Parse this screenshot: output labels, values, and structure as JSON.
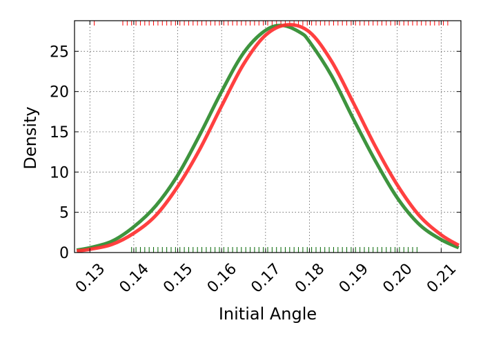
{
  "chart_data": {
    "type": "line",
    "title": "",
    "xlabel": "Initial Angle",
    "ylabel": "Density",
    "xlim": [
      0.1265,
      0.2145
    ],
    "ylim": [
      0,
      28.8
    ],
    "x_ticks": [
      0.13,
      0.14,
      0.15,
      0.16,
      0.17,
      0.18,
      0.19,
      0.2,
      0.21
    ],
    "x_tick_labels": [
      "0.13",
      "0.14",
      "0.15",
      "0.16",
      "0.17",
      "0.18",
      "0.19",
      "0.20",
      "0.21"
    ],
    "y_ticks": [
      0,
      5,
      10,
      15,
      20,
      25
    ],
    "y_tick_labels": [
      "0",
      "5",
      "10",
      "15",
      "20",
      "25"
    ],
    "grid": true,
    "legend": false,
    "series": [
      {
        "color": "#2e8b2e",
        "x": [
          0.127,
          0.13,
          0.135,
          0.14,
          0.145,
          0.15,
          0.155,
          0.16,
          0.165,
          0.17,
          0.174,
          0.178,
          0.18,
          0.185,
          0.19,
          0.195,
          0.2,
          0.205,
          0.21,
          0.214
        ],
        "y": [
          0.3,
          0.6,
          1.4,
          3.2,
          5.8,
          9.6,
          14.6,
          20.0,
          24.8,
          27.6,
          28.2,
          27.3,
          26.2,
          22.0,
          16.6,
          11.4,
          6.8,
          3.5,
          1.6,
          0.6
        ]
      },
      {
        "color": "#ff3030",
        "x": [
          0.127,
          0.13,
          0.135,
          0.14,
          0.145,
          0.15,
          0.155,
          0.16,
          0.165,
          0.17,
          0.175,
          0.18,
          0.185,
          0.19,
          0.195,
          0.2,
          0.205,
          0.21,
          0.214
        ],
        "y": [
          0.2,
          0.4,
          1.0,
          2.4,
          4.6,
          8.2,
          12.8,
          18.2,
          23.4,
          27.0,
          28.3,
          27.4,
          23.8,
          18.6,
          13.2,
          8.4,
          4.6,
          2.2,
          0.9
        ]
      }
    ],
    "rug": [
      {
        "color": "#ff0000",
        "position": "top",
        "x": [
          0.131,
          0.1375,
          0.1385,
          0.1395,
          0.1405,
          0.1415,
          0.1425,
          0.1435,
          0.1445,
          0.1455,
          0.1465,
          0.1475,
          0.1485,
          0.1495,
          0.1505,
          0.1515,
          0.1525,
          0.1535,
          0.1545,
          0.1555,
          0.1565,
          0.1575,
          0.1585,
          0.1595,
          0.1605,
          0.1615,
          0.1625,
          0.1635,
          0.1645,
          0.1655,
          0.1665,
          0.1675,
          0.1685,
          0.1695,
          0.1705,
          0.1715,
          0.1725,
          0.1735,
          0.1745,
          0.1755,
          0.1765,
          0.1775,
          0.1785,
          0.1795,
          0.1805,
          0.1815,
          0.1825,
          0.1835,
          0.1845,
          0.1855,
          0.1865,
          0.1875,
          0.1885,
          0.1895,
          0.1905,
          0.1915,
          0.1925,
          0.1935,
          0.1945,
          0.1955,
          0.1965,
          0.1975,
          0.1985,
          0.1995,
          0.2005,
          0.2015,
          0.2025,
          0.2035,
          0.2045,
          0.2055,
          0.2065,
          0.2075,
          0.2085,
          0.2095,
          0.2105,
          0.2115
        ]
      },
      {
        "color": "#006400",
        "position": "bottom",
        "x": [
          0.1395,
          0.1405,
          0.1415,
          0.1425,
          0.1435,
          0.1445,
          0.1455,
          0.1465,
          0.1475,
          0.1485,
          0.1495,
          0.1505,
          0.1515,
          0.1525,
          0.1535,
          0.1545,
          0.1555,
          0.1565,
          0.1575,
          0.1585,
          0.1595,
          0.1605,
          0.1615,
          0.1625,
          0.1635,
          0.1645,
          0.1655,
          0.1665,
          0.1675,
          0.1685,
          0.1695,
          0.1705,
          0.1715,
          0.1725,
          0.1735,
          0.1745,
          0.1755,
          0.1765,
          0.1775,
          0.1785,
          0.1795,
          0.1805,
          0.1815,
          0.1825,
          0.1835,
          0.1845,
          0.1855,
          0.1865,
          0.1875,
          0.1885,
          0.1895,
          0.1905,
          0.1915,
          0.1925,
          0.1935,
          0.1945,
          0.1955,
          0.1965,
          0.1975,
          0.1985,
          0.1995,
          0.2005,
          0.2015,
          0.2025,
          0.2035,
          0.2045
        ]
      }
    ]
  }
}
